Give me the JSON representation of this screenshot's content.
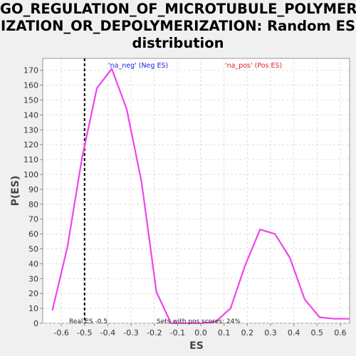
{
  "chart_data": {
    "type": "line",
    "title_lines": [
      "GO_REGULATION_OF_MICROTUBULE_POLYMER",
      "IZATION_OR_DEPOLYMERIZATION: Random ES",
      "distribution"
    ],
    "xlabel": "ES",
    "ylabel": "P(ES)",
    "xlim": [
      -0.68,
      0.64
    ],
    "ylim": [
      0,
      178
    ],
    "xticks": [
      -0.6,
      -0.5,
      -0.4,
      -0.3,
      -0.2,
      -0.1,
      0.0,
      0.1,
      0.2,
      0.3,
      0.4,
      0.5,
      0.6
    ],
    "xtick_labels": [
      "-0.6",
      "-0.5",
      "-0.4",
      "-0.3",
      "-0.2",
      "-0.1",
      "0.0",
      "0.1",
      "0.2",
      "0.3",
      "0.4",
      "0.5",
      "0.6"
    ],
    "yticks": [
      0,
      10,
      20,
      30,
      40,
      50,
      60,
      70,
      80,
      90,
      100,
      110,
      120,
      130,
      140,
      150,
      160,
      170
    ],
    "ytick_labels": [
      "0",
      "10",
      "20",
      "30",
      "40",
      "50",
      "60",
      "70",
      "80",
      "90",
      "100",
      "110",
      "120",
      "130",
      "140",
      "150",
      "160",
      "170"
    ],
    "grid": true,
    "series": [
      {
        "color": "#ee44ee",
        "x": [
          -0.638,
          -0.574,
          -0.511,
          -0.447,
          -0.383,
          -0.319,
          -0.255,
          -0.191,
          -0.128,
          -0.064,
          0.0,
          0.064,
          0.128,
          0.191,
          0.255,
          0.319,
          0.383,
          0.447,
          0.511,
          0.574,
          0.638
        ],
        "y": [
          9,
          51,
          111,
          158,
          171,
          144,
          95,
          21,
          0,
          0,
          0,
          1,
          10,
          39,
          63,
          60,
          44,
          16,
          4,
          3,
          3
        ]
      }
    ],
    "reference_line": {
      "x": -0.5,
      "label": "Real ES -0.5",
      "color": "#000000"
    },
    "legend": [
      {
        "text": "'na_neg' (Neg ES)",
        "color": "#2222dd",
        "placement": "top-left"
      },
      {
        "text": "'na_pos' (Pos ES)",
        "color": "#dd2222",
        "placement": "top-right"
      }
    ],
    "annotation": "Sets with pos scores: 24%"
  }
}
